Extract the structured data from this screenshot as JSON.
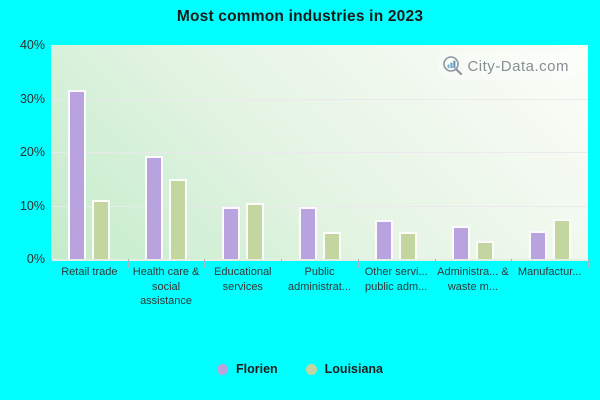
{
  "colors": {
    "background": "#00ffff",
    "florien": "#b9a3de",
    "louisiana": "#c4d6a0",
    "title_text": "#1b1b1b",
    "watermark_text": "#808890"
  },
  "chart_data": {
    "type": "bar",
    "title": "Most common industries in 2023",
    "categories": [
      "Retail trade",
      "Health care & social assistance",
      "Educational services",
      "Public administrat...",
      "Other servi... public adm...",
      "Administra... & waste m...",
      "Manufactur..."
    ],
    "series": [
      {
        "name": "Florien",
        "color": "#b9a3de",
        "values": [
          31.5,
          19.2,
          9.7,
          9.8,
          7.2,
          6.1,
          5.3
        ]
      },
      {
        "name": "Louisiana",
        "color": "#c4d6a0",
        "values": [
          11.0,
          15.0,
          10.4,
          5.0,
          5.1,
          3.4,
          7.5
        ]
      }
    ],
    "xlabel": "",
    "ylabel": "",
    "ylim": [
      0,
      40
    ],
    "yticks": [
      {
        "value": 40,
        "label": "40%"
      },
      {
        "value": 30,
        "label": "30%"
      },
      {
        "value": 20,
        "label": "20%"
      },
      {
        "value": 10,
        "label": "10%"
      },
      {
        "value": 0,
        "label": "0%"
      }
    ],
    "grid": true,
    "legend_position": "bottom",
    "watermark": "City-Data.com"
  }
}
